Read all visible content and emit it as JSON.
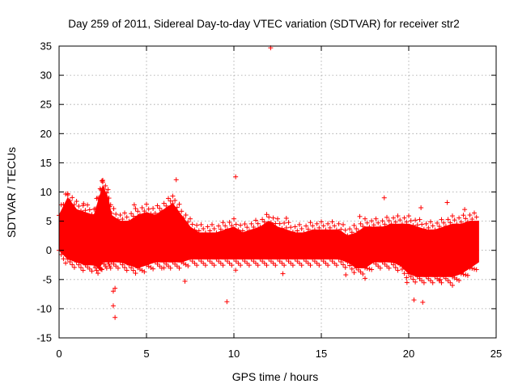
{
  "chart_data": {
    "type": "scatter",
    "title": "Day 259 of 2011, Sidereal Day-to-day VTEC variation (SDTVAR) for receiver str2",
    "xlabel": "GPS time / hours",
    "ylabel": "SDTVAR / TECUs",
    "xlim": [
      0,
      25
    ],
    "ylim": [
      -15,
      35
    ],
    "xticks": [
      "0",
      "5",
      "10",
      "15",
      "20",
      "25"
    ],
    "yticks": [
      "-15",
      "-10",
      "-5",
      "0",
      "5",
      "10",
      "15",
      "20",
      "25",
      "30",
      "35"
    ],
    "grid": true,
    "series_color": "#ff0000",
    "marker": "plus",
    "band": {
      "x": [
        0,
        0.5,
        1,
        1.5,
        2,
        2.3,
        2.5,
        2.8,
        3,
        3.5,
        4,
        4.5,
        5,
        5.5,
        6,
        6.5,
        7,
        7.5,
        8,
        8.5,
        9,
        9.5,
        10,
        10.5,
        11,
        11.5,
        12,
        12.5,
        13,
        13.5,
        14,
        14.5,
        15,
        15.5,
        16,
        16.5,
        17,
        17.5,
        18,
        18.5,
        19,
        19.5,
        20,
        20.5,
        21,
        21.5,
        22,
        22.5,
        23,
        23.5,
        24
      ],
      "upper": [
        6,
        9,
        7,
        6.5,
        6,
        9,
        11,
        9,
        6,
        5,
        5,
        6,
        6.5,
        6,
        7,
        8,
        6,
        4,
        3,
        3,
        3,
        3.5,
        4,
        3,
        3.5,
        4,
        5,
        4,
        3.5,
        3,
        3,
        3.5,
        3.5,
        3.5,
        3.5,
        2.5,
        3,
        4,
        4,
        4,
        4.5,
        4.5,
        4.5,
        4,
        3.5,
        3.5,
        4,
        4.5,
        4.5,
        5,
        5
      ],
      "lower": [
        0,
        -1.5,
        -2,
        -2.5,
        -2.5,
        -3,
        -2,
        -2,
        -2,
        -2,
        -2.5,
        -3,
        -2.5,
        -2,
        -2,
        -2,
        -2,
        -1.5,
        -1.5,
        -1.5,
        -1.5,
        -1.5,
        -1.5,
        -1.5,
        -1.5,
        -1.5,
        -1.5,
        -1.5,
        -1.5,
        -1.5,
        -1.5,
        -1.5,
        -1.5,
        -1.5,
        -1.5,
        -2,
        -3,
        -3,
        -2,
        -2,
        -2,
        -2.5,
        -4,
        -4.5,
        -4.5,
        -4.5,
        -4.5,
        -4.5,
        -4,
        -3,
        -2
      ]
    },
    "outliers": [
      {
        "x": 12.1,
        "y": 34.7
      },
      {
        "x": 10.1,
        "y": 12.6
      },
      {
        "x": 6.7,
        "y": 12.1
      },
      {
        "x": 2.5,
        "y": 12.0
      },
      {
        "x": 0.5,
        "y": 9.5
      },
      {
        "x": 6.5,
        "y": 9.3
      },
      {
        "x": 18.6,
        "y": 9.0
      },
      {
        "x": 22.2,
        "y": 8.2
      },
      {
        "x": 20.7,
        "y": 7.3
      },
      {
        "x": 23.2,
        "y": 7.0
      },
      {
        "x": 3.2,
        "y": -11.5
      },
      {
        "x": 3.1,
        "y": -9.5
      },
      {
        "x": 9.6,
        "y": -8.8
      },
      {
        "x": 20.8,
        "y": -8.9
      },
      {
        "x": 20.3,
        "y": -8.5
      },
      {
        "x": 3.1,
        "y": -7.0
      },
      {
        "x": 3.2,
        "y": -6.5
      },
      {
        "x": 10.1,
        "y": -3.4
      },
      {
        "x": 6.0,
        "y": -3.0
      },
      {
        "x": 7.2,
        "y": -5.3
      },
      {
        "x": 12.8,
        "y": -4.0
      },
      {
        "x": 16.4,
        "y": -4.2
      },
      {
        "x": 17.5,
        "y": -4.8
      },
      {
        "x": 19.9,
        "y": -5.5
      },
      {
        "x": 22.5,
        "y": -6.0
      },
      {
        "x": 21.8,
        "y": -5.0
      },
      {
        "x": 13.0,
        "y": 5.5
      },
      {
        "x": 17.2,
        "y": 5.8
      },
      {
        "x": 1.4,
        "y": 8.0
      },
      {
        "x": 4.3,
        "y": 7.8
      }
    ]
  }
}
